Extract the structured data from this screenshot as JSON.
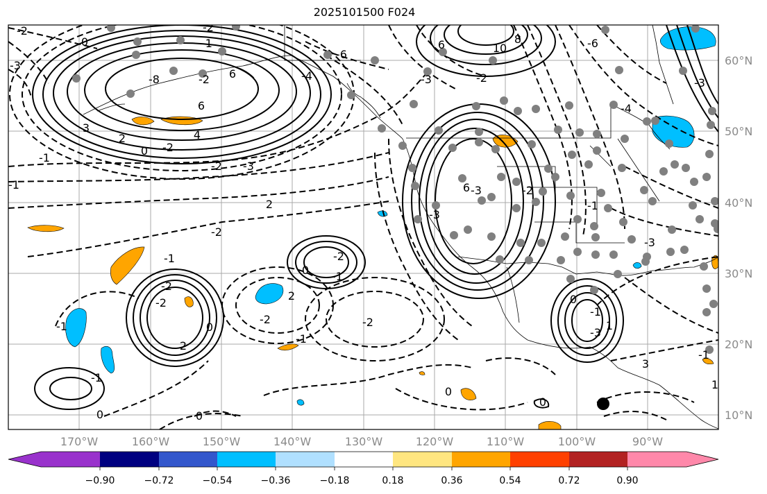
{
  "title": "2025101500 F024",
  "latitude_labels": [
    "60°N",
    "50°N",
    "40°N",
    "30°N",
    "20°N",
    "10°N"
  ],
  "longitude_labels": [
    "170°W",
    "160°W",
    "150°W",
    "140°W",
    "130°W",
    "120°W",
    "110°W",
    "100°W",
    "90°W"
  ],
  "contour_labels": [
    "-2",
    "0",
    "-2",
    "-1",
    "6",
    "-3",
    "-2",
    "6",
    "-8",
    "0",
    "3",
    "2",
    "4",
    "-2",
    "-2",
    "-3",
    "-1",
    "-1",
    "2",
    "-2",
    "-6",
    "-4",
    "-3",
    "-3",
    "-2",
    "-2",
    "-1",
    "2",
    "0",
    "-1",
    "-2",
    "0",
    "-1",
    "-2",
    "-2",
    "2",
    "0",
    "-1",
    "0",
    "-1",
    "-3",
    "10",
    "8",
    "6",
    "-6",
    "-2",
    "-4",
    "6",
    "-3",
    "-2",
    "-3",
    "-1",
    "0",
    "-1",
    "-3",
    "3",
    "1",
    "-1",
    "0",
    "0",
    "1"
  ],
  "colorbar": {
    "tick_labels": [
      "−0.90",
      "−0.72",
      "−0.54",
      "−0.36",
      "−0.18",
      "0.18",
      "0.36",
      "0.54",
      "0.72",
      "0.90"
    ],
    "colors": [
      "#9932cc",
      "#000080",
      "#3357cc",
      "#00bfff",
      "#b0e0ff",
      "#ffffff",
      "#ffe680",
      "#ffa500",
      "#ff4000",
      "#b22222",
      "#ff88aa"
    ]
  },
  "colors": {
    "positive_fill": "#ffa500",
    "negative_fill": "#00bfff",
    "station_marker": "#808080",
    "grid": "#a8a8a8"
  }
}
